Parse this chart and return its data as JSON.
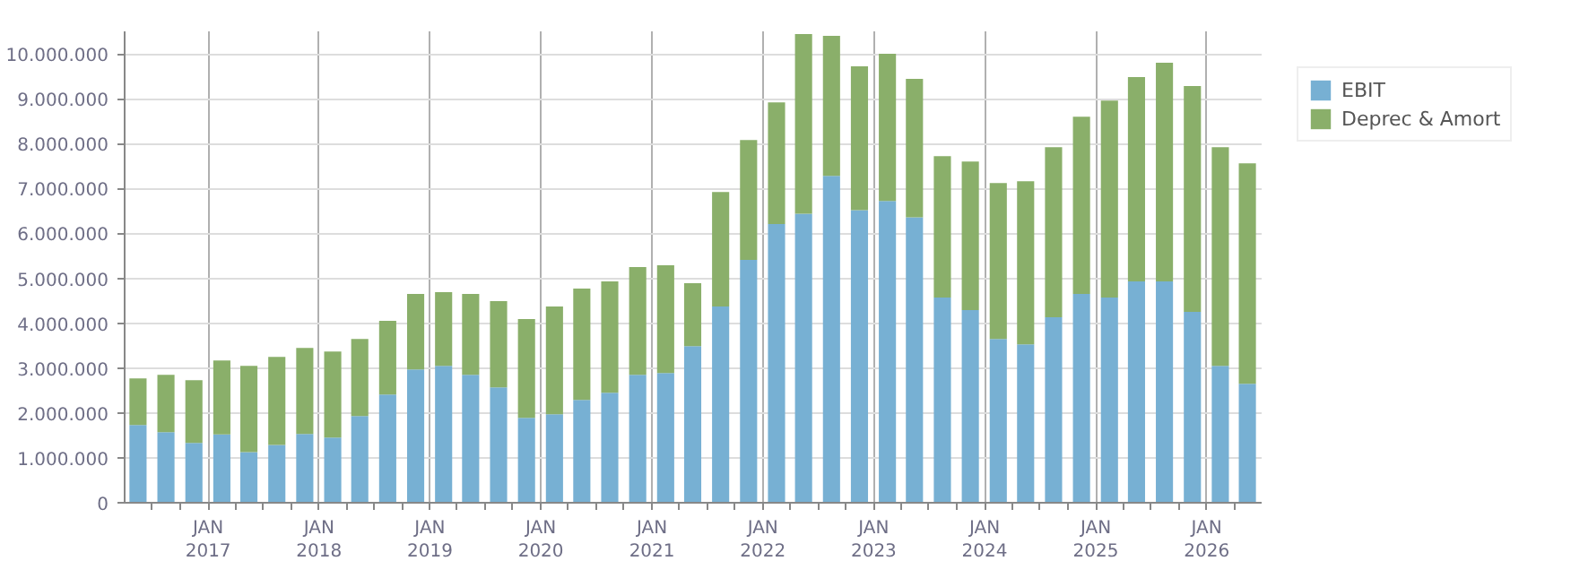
{
  "chart_data": {
    "type": "bar",
    "stacked": true,
    "x": [
      "2016-05-15",
      "2016-08-15",
      "2016-11-15",
      "2017-02-15",
      "2017-05-15",
      "2017-08-15",
      "2017-11-15",
      "2018-02-15",
      "2018-05-15",
      "2018-08-15",
      "2018-11-15",
      "2019-02-15",
      "2019-05-15",
      "2019-08-15",
      "2019-11-15",
      "2020-02-15",
      "2020-05-15",
      "2020-08-15",
      "2020-11-15",
      "2021-02-15",
      "2021-05-15",
      "2021-08-15",
      "2021-11-15",
      "2022-02-15",
      "2022-05-15",
      "2022-08-15",
      "2022-11-15",
      "2023-02-15",
      "2023-05-15",
      "2023-08-15",
      "2023-11-15",
      "2024-02-15",
      "2024-05-15",
      "2024-08-15",
      "2024-11-15",
      "2025-02-15",
      "2025-05-15",
      "2025-08-15",
      "2025-11-15",
      "2026-02-15",
      "2026-05-15"
    ],
    "series": [
      {
        "name": "EBIT",
        "color": "#77b0d3",
        "values": [
          1730000,
          1570000,
          1330000,
          1520000,
          1130000,
          1290000,
          1530000,
          1450000,
          1930000,
          2410000,
          2970000,
          3050000,
          2850000,
          2570000,
          1890000,
          1970000,
          2290000,
          2450000,
          2850000,
          2890000,
          3490000,
          4370000,
          5410000,
          6210000,
          6440000,
          7280000,
          6520000,
          6720000,
          6360000,
          4570000,
          4290000,
          3650000,
          3530000,
          4130000,
          4650000,
          4570000,
          4930000,
          4930000,
          4250000,
          3050000,
          2650000
        ]
      },
      {
        "name": "Deprec & Amort",
        "color": "#8aaf6a",
        "values": [
          1040000,
          1280000,
          1400000,
          1650000,
          1920000,
          1960000,
          1920000,
          1920000,
          1720000,
          1640000,
          1680000,
          1640000,
          1800000,
          1920000,
          2200000,
          2400000,
          2480000,
          2480000,
          2400000,
          2400000,
          1400000,
          2550000,
          2670000,
          2710000,
          4000000,
          3120000,
          3200000,
          3280000,
          3080000,
          3150000,
          3310000,
          3470000,
          3630000,
          3790000,
          3950000,
          4390000,
          4550000,
          4870000,
          5030000,
          4870000,
          4910000
        ]
      }
    ],
    "xlim": [
      "2016-04-01",
      "2026-07-01"
    ],
    "xticks": [
      {
        "value": "2016-07-01",
        "label": null
      },
      {
        "value": "2016-10-01",
        "label": null
      },
      {
        "value": "2017-01-01",
        "label": "JAN\n2017"
      },
      {
        "value": "2017-04-01",
        "label": null
      },
      {
        "value": "2017-07-01",
        "label": null
      },
      {
        "value": "2017-10-01",
        "label": null
      },
      {
        "value": "2018-01-01",
        "label": "JAN\n2018"
      },
      {
        "value": "2018-04-01",
        "label": null
      },
      {
        "value": "2018-07-01",
        "label": null
      },
      {
        "value": "2018-10-01",
        "label": null
      },
      {
        "value": "2019-01-01",
        "label": "JAN\n2019"
      },
      {
        "value": "2019-04-01",
        "label": null
      },
      {
        "value": "2019-07-01",
        "label": null
      },
      {
        "value": "2019-10-01",
        "label": null
      },
      {
        "value": "2020-01-01",
        "label": "JAN\n2020"
      },
      {
        "value": "2020-04-01",
        "label": null
      },
      {
        "value": "2020-07-01",
        "label": null
      },
      {
        "value": "2020-10-01",
        "label": null
      },
      {
        "value": "2021-01-01",
        "label": "JAN\n2021"
      },
      {
        "value": "2021-04-01",
        "label": null
      },
      {
        "value": "2021-07-01",
        "label": null
      },
      {
        "value": "2021-10-01",
        "label": null
      },
      {
        "value": "2022-01-01",
        "label": "JAN\n2022"
      },
      {
        "value": "2022-04-01",
        "label": null
      },
      {
        "value": "2022-07-01",
        "label": null
      },
      {
        "value": "2022-10-01",
        "label": null
      },
      {
        "value": "2023-01-01",
        "label": "JAN\n2023"
      },
      {
        "value": "2023-04-01",
        "label": null
      },
      {
        "value": "2023-07-01",
        "label": null
      },
      {
        "value": "2023-10-01",
        "label": null
      },
      {
        "value": "2024-01-01",
        "label": "JAN\n2024"
      },
      {
        "value": "2024-04-01",
        "label": null
      },
      {
        "value": "2024-07-01",
        "label": null
      },
      {
        "value": "2024-10-01",
        "label": null
      },
      {
        "value": "2025-01-01",
        "label": "JAN\n2025"
      },
      {
        "value": "2025-04-01",
        "label": null
      },
      {
        "value": "2025-07-01",
        "label": null
      },
      {
        "value": "2025-10-01",
        "label": null
      },
      {
        "value": "2026-01-01",
        "label": "JAN\n2026"
      },
      {
        "value": "2026-04-01",
        "label": null
      }
    ],
    "ylim": [
      0,
      10500000
    ],
    "yticks": [
      0,
      {
        "value": 1000000,
        "label": "1.000.000"
      },
      {
        "value": 2000000,
        "label": "2.000.000"
      },
      {
        "value": 3000000,
        "label": "3.000.000"
      },
      {
        "value": 4000000,
        "label": "4.000.000"
      },
      {
        "value": 5000000,
        "label": "5.000.000"
      },
      {
        "value": 6000000,
        "label": "6.000.000"
      },
      {
        "value": 7000000,
        "label": "7.000.000"
      },
      {
        "value": 8000000,
        "label": "8.000.000"
      },
      {
        "value": 9000000,
        "label": "9.000.000"
      },
      {
        "value": 10000000,
        "label": "10.000.000"
      }
    ],
    "grid": true,
    "legend": "top right"
  }
}
